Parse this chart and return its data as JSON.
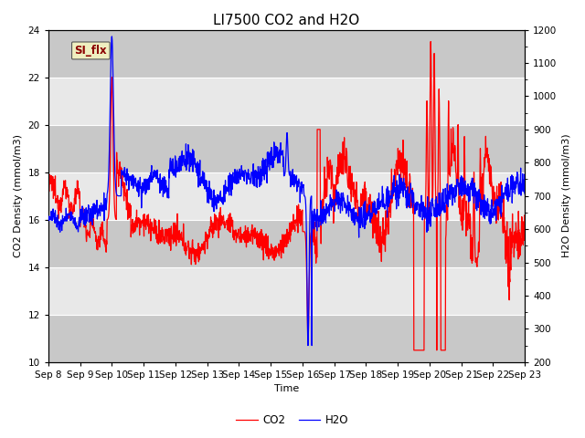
{
  "title": "LI7500 CO2 and H2O",
  "xlabel": "Time",
  "ylabel_left": "CO2 Density (mmol/m3)",
  "ylabel_right": "H2O Density (mmol/m3)",
  "ylim_left": [
    10,
    24
  ],
  "ylim_right": [
    200,
    1200
  ],
  "yticks_left": [
    10,
    12,
    14,
    16,
    18,
    20,
    22,
    24
  ],
  "yticks_right": [
    200,
    300,
    400,
    500,
    600,
    700,
    800,
    900,
    1000,
    1100,
    1200
  ],
  "xtick_labels": [
    "Sep 8",
    "Sep 9",
    "Sep 10",
    "Sep 11",
    "Sep 12",
    "Sep 13",
    "Sep 14",
    "Sep 15",
    "Sep 16",
    "Sep 17",
    "Sep 18",
    "Sep 19",
    "Sep 20",
    "Sep 21",
    "Sep 22",
    "Sep 23"
  ],
  "legend_labels": [
    "CO2",
    "H2O"
  ],
  "line_colors": [
    "red",
    "blue"
  ],
  "annotation_text": "SI_flx",
  "annotation_color": "#8B0000",
  "annotation_bg": "#efefc0",
  "background_color": "#dcdcdc",
  "band_color_dark": "#c8c8c8",
  "band_color_light": "#e8e8e8",
  "grid_color": "#b0b0b0",
  "title_fontsize": 11,
  "label_fontsize": 8,
  "tick_fontsize": 7.5
}
